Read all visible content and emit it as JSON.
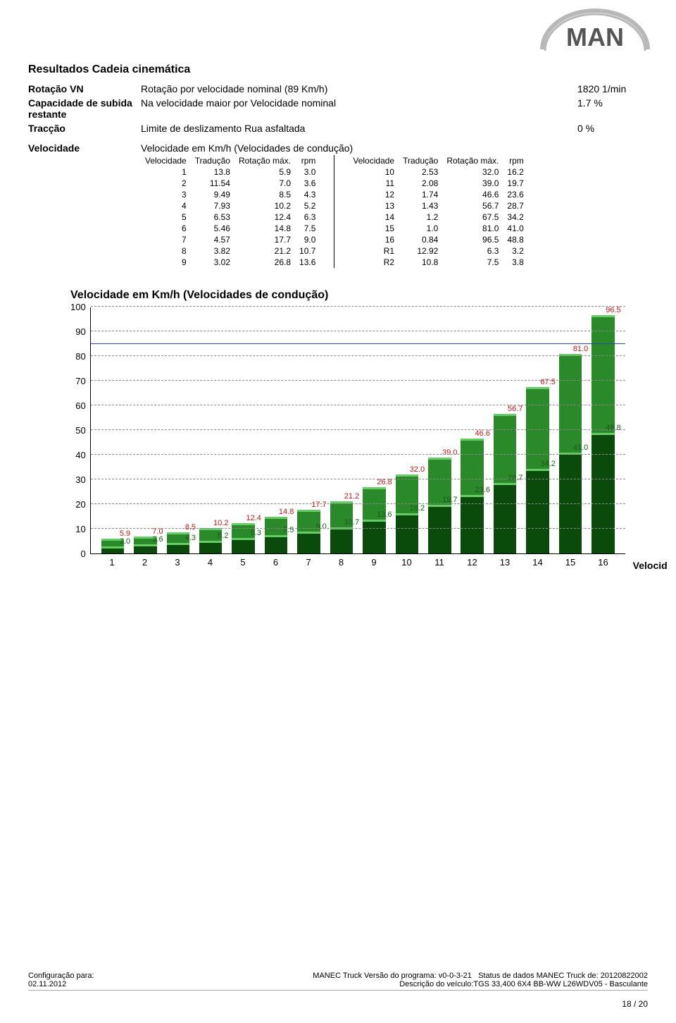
{
  "logo": {
    "text": "MAN",
    "fill": "#c0c0c0",
    "letter_fill": "#4a4a4a"
  },
  "section_title": "Resultados Cadeia cinemática",
  "specs": [
    {
      "label": "Rotação VN",
      "desc": "Rotação por velocidade nominal (89 Km/h)",
      "value": "1820 1/min"
    },
    {
      "label": "Capacidade de subida restante",
      "desc": "Na velocidade maior por Velocidade nominal",
      "value": "1.7 %"
    },
    {
      "label": "Tracção",
      "desc": "Limite de deslizamento Rua asfaltada",
      "value": "0 %"
    }
  ],
  "vel_label": "Velocidade",
  "vel_subtitle": "Velocidade em Km/h (Velocidades de condução)",
  "table_headers_left": [
    "Velocidade",
    "Tradução",
    "Rotação máx.",
    "rpm"
  ],
  "table_headers_right": [
    "Velocidade",
    "Tradução",
    "Rotação máx.",
    "rpm"
  ],
  "rows_left": [
    [
      "1",
      "13.8",
      "5.9",
      "3.0"
    ],
    [
      "2",
      "11.54",
      "7.0",
      "3.6"
    ],
    [
      "3",
      "9.49",
      "8.5",
      "4.3"
    ],
    [
      "4",
      "7.93",
      "10.2",
      "5.2"
    ],
    [
      "5",
      "6.53",
      "12.4",
      "6.3"
    ],
    [
      "6",
      "5.46",
      "14.8",
      "7.5"
    ],
    [
      "7",
      "4.57",
      "17.7",
      "9.0"
    ],
    [
      "8",
      "3.82",
      "21.2",
      "10.7"
    ],
    [
      "9",
      "3.02",
      "26.8",
      "13.6"
    ]
  ],
  "rows_right": [
    [
      "10",
      "2.53",
      "32.0",
      "16.2"
    ],
    [
      "11",
      "2.08",
      "39.0",
      "19.7"
    ],
    [
      "12",
      "1.74",
      "46.6",
      "23.6"
    ],
    [
      "13",
      "1.43",
      "56.7",
      "28.7"
    ],
    [
      "14",
      "1.2",
      "67.5",
      "34.2"
    ],
    [
      "15",
      "1.0",
      "81.0",
      "41.0"
    ],
    [
      "16",
      "0.84",
      "96.5",
      "48.8"
    ],
    [
      "R1",
      "12.92",
      "6.3",
      "3.2"
    ],
    [
      "R2",
      "10.8",
      "7.5",
      "3.8"
    ]
  ],
  "chart": {
    "title": "Velocidade em Km/h (Velocidades de condução)",
    "ylim": [
      0,
      100
    ],
    "yticks": [
      0,
      10,
      20,
      30,
      40,
      50,
      60,
      70,
      80,
      90,
      100
    ],
    "h_ref": 85,
    "x_title": "Velocid",
    "colors": {
      "dark": "#0a4a0a",
      "mid": "#2a8a2a",
      "light": "#66cc66",
      "top_text": "#c01818",
      "mid_text": "#1a5a1a",
      "grid": "#888888",
      "ref_line": "#2a4aa0"
    },
    "categories": [
      "1",
      "2",
      "3",
      "4",
      "5",
      "6",
      "7",
      "8",
      "9",
      "10",
      "11",
      "12",
      "13",
      "14",
      "15",
      "16"
    ],
    "bars": [
      {
        "top": 5.9,
        "mid": 3.0,
        "lbl_top": "5.9",
        "lbl_mid": "3.0"
      },
      {
        "top": 7.0,
        "mid": 3.6,
        "lbl_top": "7.0",
        "lbl_mid": "3.6"
      },
      {
        "top": 8.5,
        "mid": 4.3,
        "lbl_top": "8.5",
        "lbl_mid": "4.3"
      },
      {
        "top": 10.2,
        "mid": 5.2,
        "lbl_top": "10.2",
        "lbl_mid": "5.2"
      },
      {
        "top": 12.4,
        "mid": 6.3,
        "lbl_top": "12.4",
        "lbl_mid": "6.3"
      },
      {
        "top": 14.8,
        "mid": 7.5,
        "lbl_top": "14.8",
        "lbl_mid": "7.5"
      },
      {
        "top": 17.7,
        "mid": 9.0,
        "lbl_top": "17.7",
        "lbl_mid": "9.0"
      },
      {
        "top": 21.2,
        "mid": 10.7,
        "lbl_top": "21.2",
        "lbl_mid": "10.7"
      },
      {
        "top": 26.8,
        "mid": 13.6,
        "lbl_top": "26.8",
        "lbl_mid": "13.6"
      },
      {
        "top": 32.0,
        "mid": 16.2,
        "lbl_top": "32.0",
        "lbl_mid": "16.2"
      },
      {
        "top": 39.0,
        "mid": 19.7,
        "lbl_top": "39.0",
        "lbl_mid": "19.7"
      },
      {
        "top": 46.6,
        "mid": 23.6,
        "lbl_top": "46.6",
        "lbl_mid": "23.6"
      },
      {
        "top": 56.7,
        "mid": 28.7,
        "lbl_top": "56.7",
        "lbl_mid": "28.7"
      },
      {
        "top": 67.5,
        "mid": 34.2,
        "lbl_top": "67.5",
        "lbl_mid": "34.2"
      },
      {
        "top": 81.0,
        "mid": 41.0,
        "lbl_top": "81.0",
        "lbl_mid": "41.0"
      },
      {
        "top": 96.5,
        "mid": 48.8,
        "lbl_top": "96.5",
        "lbl_mid": "48.8"
      }
    ]
  },
  "footer": {
    "left1": "Configuração para:",
    "right1a": "MANEC Truck Versão do programa: v0-0-3-21",
    "right1b": "Status de dados MANEC Truck de: 20120822002",
    "left2": "02.11.2012",
    "right2": "Descrição do veículo:TGS 33,400 6X4 BB-WW L26WDV05 - Basculante",
    "page": "18 / 20"
  }
}
